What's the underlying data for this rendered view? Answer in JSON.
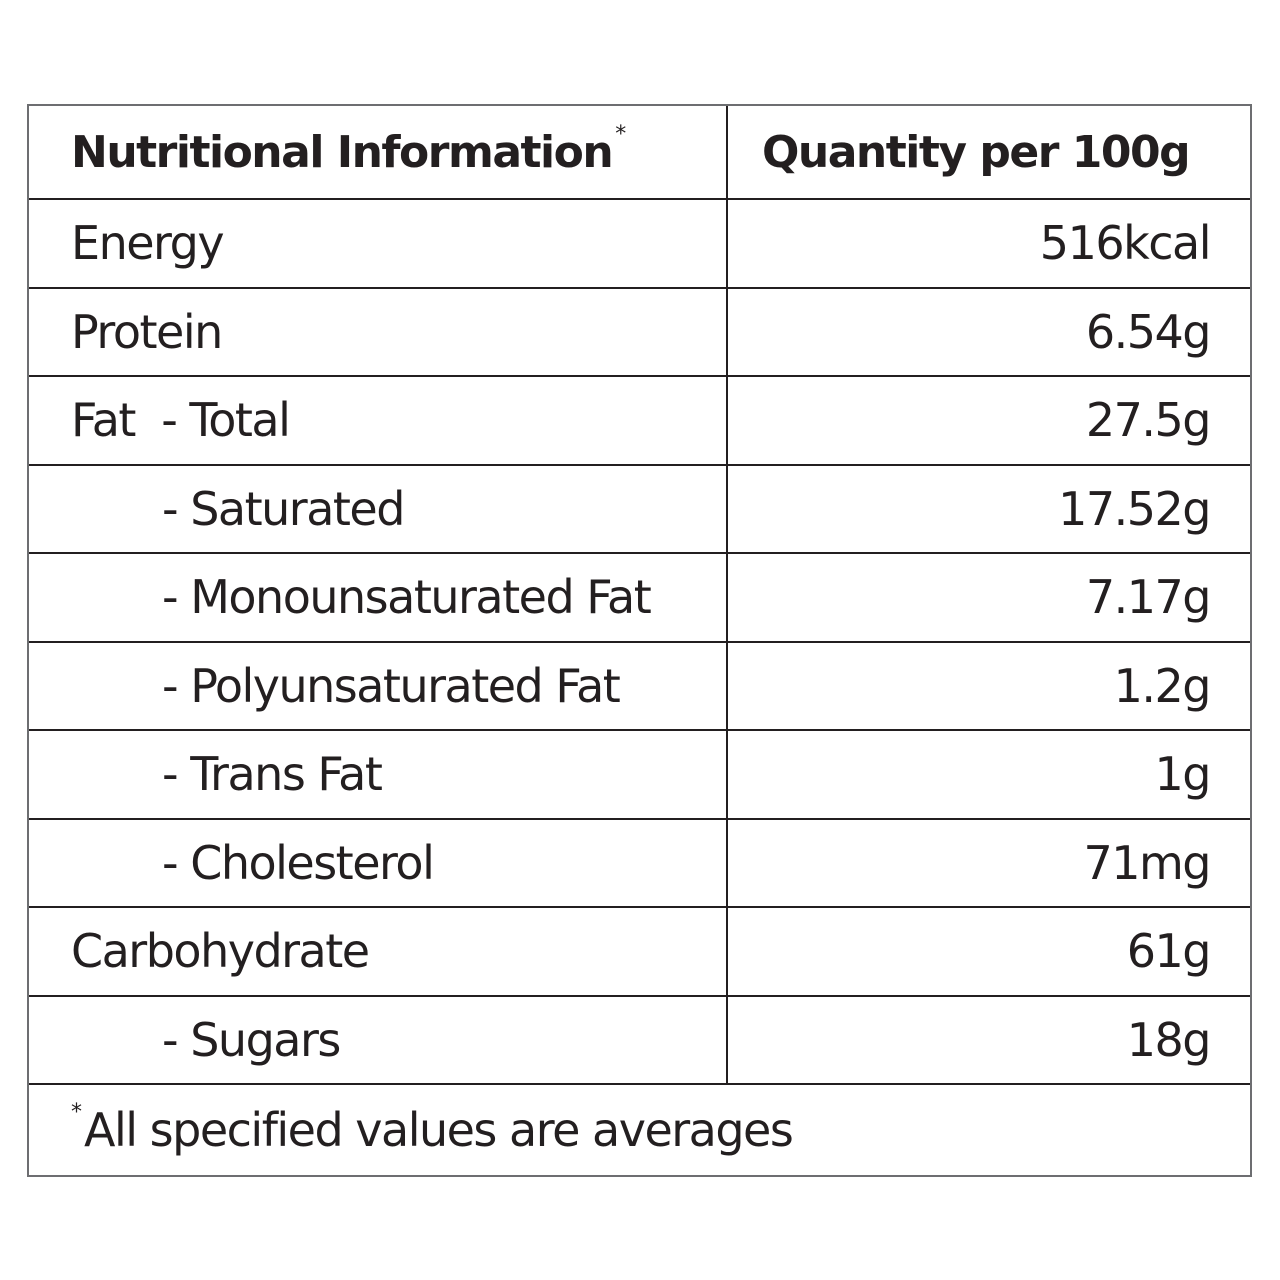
{
  "table": {
    "header": {
      "name": "Nutritional Information",
      "name_marker": "*",
      "value": "Quantity per 100g"
    },
    "rows": [
      {
        "name": "Energy",
        "value": "516kcal",
        "indent": false
      },
      {
        "name": "Protein",
        "value": "6.54g",
        "indent": false
      },
      {
        "name": "Fat  - Total",
        "value": "27.5g",
        "indent": false
      },
      {
        "name": "- Saturated",
        "value": "17.52g",
        "indent": true
      },
      {
        "name": "- Monounsaturated Fat",
        "value": "7.17g",
        "indent": true
      },
      {
        "name": "- Polyunsaturated Fat",
        "value": "1.2g",
        "indent": true
      },
      {
        "name": "- Trans Fat",
        "value": "1g",
        "indent": true
      },
      {
        "name": "- Cholesterol",
        "value": "71mg",
        "indent": true
      },
      {
        "name": "Carbohydrate",
        "value": "61g",
        "indent": false
      },
      {
        "name": "- Sugars",
        "value": "18g",
        "indent": true
      }
    ],
    "footnote": {
      "marker": "*",
      "text": "All specified values are averages"
    }
  },
  "colors": {
    "text": "#231f20",
    "border": "#231f20",
    "outer_border": "#6d6e71",
    "background": "#ffffff"
  }
}
